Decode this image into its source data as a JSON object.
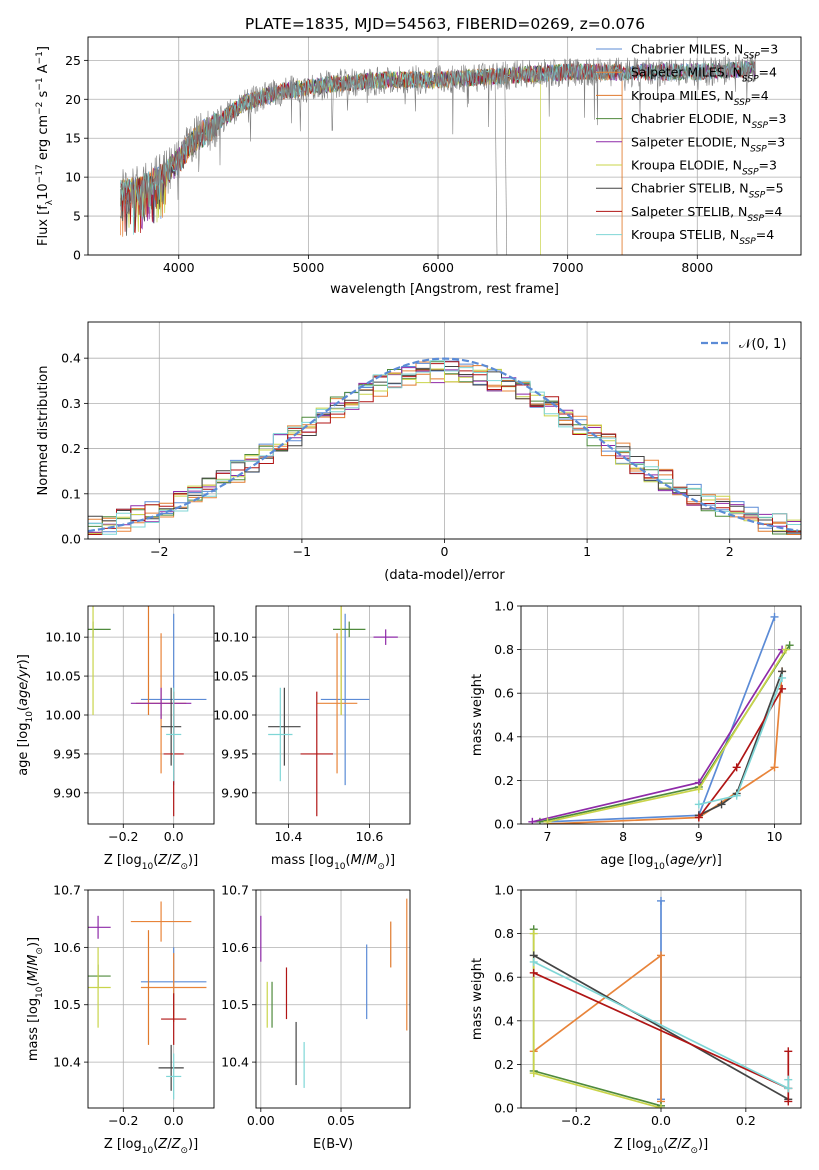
{
  "figure": {
    "title": "PLATE=1835, MJD=54563, FIBERID=0269, z=0.076"
  },
  "colors": {
    "Chabrier MILES": "#5b8bd6",
    "Salpeter MILES": "#e8843a",
    "Kroupa MILES": "#e07a2d",
    "Chabrier ELODIE": "#4f8a3c",
    "Salpeter ELODIE": "#8e2aa8",
    "Kroupa ELODIE": "#c9d44a",
    "Chabrier STELIB": "#444444",
    "Salpeter STELIB": "#b01515",
    "Kroupa STELIB": "#7fd6d6",
    "data": "#808080",
    "grid": "#b0b0b0"
  },
  "chart_data": [
    {
      "id": "spectrum",
      "type": "line",
      "xlabel": "wavelength [Angstrom, rest frame]",
      "ylabel_main": "Flux [f",
      "ylabel_sub": "λ",
      "ylabel_rest": "10",
      "ylabel_exp1": "−17",
      "ylabel_tail": " erg cm",
      "ylabel_exp2": "−2",
      "ylabel_tail2": " s",
      "ylabel_exp3": "−1",
      "ylabel_tail3": " A",
      "ylabel_exp4": "−1",
      "ylabel_end": "]",
      "xlim": [
        3300,
        8800
      ],
      "ylim": [
        0,
        28
      ],
      "xticks": [
        4000,
        5000,
        6000,
        7000,
        8000
      ],
      "yticks": [
        0,
        5,
        10,
        15,
        20,
        25
      ],
      "legend_position": "upper right",
      "legend": [
        {
          "name": "Chabrier MILES",
          "n": "3"
        },
        {
          "name": "Salpeter MILES",
          "n": "4"
        },
        {
          "name": "Kroupa MILES",
          "n": "4"
        },
        {
          "name": "Chabrier ELODIE",
          "n": "3"
        },
        {
          "name": "Salpeter ELODIE",
          "n": "3"
        },
        {
          "name": "Kroupa ELODIE",
          "n": "3"
        },
        {
          "name": "Chabrier STELIB",
          "n": "5"
        },
        {
          "name": "Salpeter STELIB",
          "n": "4"
        },
        {
          "name": "Kroupa STELIB",
          "n": "4"
        }
      ],
      "legend_n_label": "N",
      "legend_n_sub": "SSP",
      "continuum": [
        [
          3550,
          8
        ],
        [
          3700,
          8.5
        ],
        [
          3900,
          10.5
        ],
        [
          4000,
          12
        ],
        [
          4100,
          14.5
        ],
        [
          4300,
          17
        ],
        [
          4500,
          19.5
        ],
        [
          4800,
          21
        ],
        [
          5200,
          22
        ],
        [
          5600,
          22.5
        ],
        [
          6000,
          22.5
        ],
        [
          6500,
          23
        ],
        [
          7000,
          23.5
        ],
        [
          7500,
          23.5
        ],
        [
          8000,
          23.5
        ],
        [
          8450,
          24
        ]
      ]
    },
    {
      "id": "residuals",
      "type": "histogram",
      "xlabel": "(data-model)/error",
      "ylabel": "Normed distribution",
      "xlim": [
        -2.5,
        2.5
      ],
      "ylim": [
        0,
        0.48
      ],
      "xticks": [
        -2,
        -1,
        0,
        1,
        2
      ],
      "yticks": [
        0.0,
        0.1,
        0.2,
        0.3,
        0.4
      ],
      "legend": "𝒩(0, 1)",
      "legend_position": "upper right"
    },
    {
      "id": "age_vs_Z",
      "type": "scatter",
      "xlabel": "Z [log",
      "xlabel_sub": "10",
      "xlabel_rest": "(Z/Z",
      "xlabel_end": ")]",
      "ylabel": "age  [log",
      "ylabel_sub": "10",
      "ylabel_rest": "(age/yr)]",
      "xlim": [
        -0.34,
        0.16
      ],
      "ylim": [
        9.86,
        10.14
      ],
      "xticks": [
        -0.2,
        0.0
      ],
      "yticks": [
        9.9,
        9.95,
        10.0,
        10.05,
        10.1
      ],
      "points": [
        {
          "s": "Chabrier MILES",
          "x": 0.0,
          "y": 10.02,
          "xe": 0.13,
          "ye": 0.11
        },
        {
          "s": "Salpeter MILES",
          "x": -0.05,
          "y": 10.015,
          "xe": 0.1,
          "ye": 0.09
        },
        {
          "s": "Kroupa MILES",
          "x": -0.1,
          "y": 10.1,
          "xe": 0.0,
          "ye": 0.1
        },
        {
          "s": "Chabrier ELODIE",
          "x": -0.32,
          "y": 10.11,
          "xe": 0.07,
          "ye": 0.01
        },
        {
          "s": "Salpeter ELODIE",
          "x": -0.05,
          "y": 10.015,
          "xe": 0.12,
          "ye": 0.02
        },
        {
          "s": "Kroupa ELODIE",
          "x": -0.32,
          "y": 10.1,
          "xe": 0.0,
          "ye": 0.1
        },
        {
          "s": "Chabrier STELIB",
          "x": -0.01,
          "y": 9.985,
          "xe": 0.04,
          "ye": 0.05
        },
        {
          "s": "Salpeter STELIB",
          "x": 0.0,
          "y": 9.95,
          "xe": 0.04,
          "ye": 0.08
        },
        {
          "s": "Kroupa STELIB",
          "x": 0.0,
          "y": 9.975,
          "xe": 0.03,
          "ye": 0.06
        }
      ]
    },
    {
      "id": "age_vs_mass",
      "type": "scatter",
      "xlabel": "mass [log",
      "xlabel_sub": "10",
      "xlabel_rest": "(M/M",
      "xlabel_end": ")]",
      "xlim": [
        10.32,
        10.7
      ],
      "ylim": [
        9.86,
        10.14
      ],
      "xticks": [
        10.4,
        10.6
      ],
      "yticks": [
        9.9,
        9.95,
        10.0,
        10.05,
        10.1
      ],
      "points": [
        {
          "s": "Chabrier MILES",
          "x": 10.54,
          "y": 10.02,
          "xe": 0.06,
          "ye": 0.11
        },
        {
          "s": "Salpeter MILES",
          "x": 10.52,
          "y": 10.015,
          "xe": 0.05,
          "ye": 0.09
        },
        {
          "s": "Kroupa MILES",
          "x": 10.53,
          "y": 10.1,
          "xe": 0.0,
          "ye": 0.1
        },
        {
          "s": "Chabrier ELODIE",
          "x": 10.55,
          "y": 10.11,
          "xe": 0.04,
          "ye": 0.01
        },
        {
          "s": "Salpeter ELODIE",
          "x": 10.64,
          "y": 10.1,
          "xe": 0.03,
          "ye": 0.01
        },
        {
          "s": "Kroupa ELODIE",
          "x": 10.53,
          "y": 10.1,
          "xe": 0.0,
          "ye": 0.1
        },
        {
          "s": "Chabrier STELIB",
          "x": 10.39,
          "y": 9.985,
          "xe": 0.04,
          "ye": 0.05
        },
        {
          "s": "Salpeter STELIB",
          "x": 10.47,
          "y": 9.95,
          "xe": 0.04,
          "ye": 0.08
        },
        {
          "s": "Kroupa STELIB",
          "x": 10.38,
          "y": 9.975,
          "xe": 0.03,
          "ye": 0.06
        }
      ]
    },
    {
      "id": "massweight_vs_age",
      "type": "line",
      "xlabel": "age  [log",
      "xlabel_sub": "10",
      "xlabel_rest": "(age/yr)]",
      "ylabel": "mass weight",
      "xlim": [
        6.65,
        10.35
      ],
      "ylim": [
        0,
        1.0
      ],
      "xticks": [
        7,
        8,
        9,
        10
      ],
      "yticks": [
        0.0,
        0.2,
        0.4,
        0.6,
        0.8,
        1.0
      ],
      "series": [
        {
          "name": "Chabrier MILES",
          "points": [
            [
              7.0,
              0.01
            ],
            [
              9.0,
              0.04
            ],
            [
              10.0,
              0.95
            ]
          ]
        },
        {
          "name": "Salpeter MILES",
          "points": [
            [
              7.0,
              0.0
            ],
            [
              9.0,
              0.03
            ],
            [
              10.0,
              0.26
            ],
            [
              10.1,
              0.7
            ]
          ]
        },
        {
          "name": "Chabrier ELODIE",
          "points": [
            [
              6.9,
              0.01
            ],
            [
              9.0,
              0.17
            ],
            [
              10.2,
              0.82
            ]
          ]
        },
        {
          "name": "Salpeter ELODIE",
          "points": [
            [
              6.8,
              0.01
            ],
            [
              9.0,
              0.19
            ],
            [
              10.1,
              0.8
            ]
          ]
        },
        {
          "name": "Kroupa ELODIE",
          "points": [
            [
              7.0,
              0.01
            ],
            [
              9.0,
              0.16
            ],
            [
              10.15,
              0.8
            ]
          ]
        },
        {
          "name": "Chabrier STELIB",
          "points": [
            [
              9.0,
              0.04
            ],
            [
              9.3,
              0.09
            ],
            [
              9.5,
              0.14
            ],
            [
              10.1,
              0.7
            ]
          ]
        },
        {
          "name": "Salpeter STELIB",
          "points": [
            [
              9.0,
              0.03
            ],
            [
              9.5,
              0.26
            ],
            [
              10.1,
              0.62
            ]
          ]
        },
        {
          "name": "Kroupa STELIB",
          "points": [
            [
              9.0,
              0.09
            ],
            [
              9.5,
              0.13
            ],
            [
              10.1,
              0.67
            ]
          ]
        }
      ]
    },
    {
      "id": "mass_vs_Z",
      "type": "scatter",
      "xlabel": "Z [log",
      "xlabel_sub": "10",
      "xlabel_rest": "(Z/Z",
      "xlabel_end": ")]",
      "ylabel": "mass [log",
      "ylabel_sub": "10",
      "ylabel_rest": "(M/M",
      "ylabel_end": ")]",
      "xlim": [
        -0.34,
        0.16
      ],
      "ylim": [
        10.32,
        10.7
      ],
      "xticks": [
        -0.2,
        0.0
      ],
      "yticks": [
        10.4,
        10.5,
        10.6,
        10.7
      ],
      "points": [
        {
          "s": "Chabrier MILES",
          "x": 0.0,
          "y": 10.54,
          "xe": 0.13,
          "ye": 0.06
        },
        {
          "s": "Salpeter MILES",
          "x": 0.0,
          "y": 10.53,
          "xe": 0.13,
          "ye": 0.06
        },
        {
          "s": "Kroupa MILES",
          "x": -0.1,
          "y": 10.53,
          "xe": 0.0,
          "ye": 0.1
        },
        {
          "s": "Chabrier ELODIE",
          "x": -0.3,
          "y": 10.55,
          "xe": 0.05,
          "ye": 0.02
        },
        {
          "s": "Salpeter ELODIE",
          "x": -0.3,
          "y": 10.635,
          "xe": 0.05,
          "ye": 0.02
        },
        {
          "s": "Kroupa ELODIE",
          "x": -0.3,
          "y": 10.53,
          "xe": 0.05,
          "ye": 0.07
        },
        {
          "s": "Chabrier STELIB",
          "x": -0.01,
          "y": 10.39,
          "xe": 0.05,
          "ye": 0.04
        },
        {
          "s": "Salpeter STELIB",
          "x": 0.0,
          "y": 10.475,
          "xe": 0.05,
          "ye": 0.045
        },
        {
          "s": "Kroupa STELIB",
          "x": 0.0,
          "y": 10.375,
          "xe": 0.03,
          "ye": 0.04
        }
      ],
      "extra_point": {
        "s": "Salpeter MILES",
        "x": -0.05,
        "y": 10.645,
        "xe": 0.12,
        "ye": 0.035
      }
    },
    {
      "id": "mass_vs_ebv",
      "type": "scatter",
      "xlabel": "E(B-V)",
      "xlim": [
        -0.003,
        0.093
      ],
      "ylim": [
        10.32,
        10.7
      ],
      "xticks": [
        0.0,
        0.05
      ],
      "yticks": [
        10.4,
        10.5,
        10.6,
        10.7
      ],
      "points": [
        {
          "s": "Salpeter ELODIE",
          "x": 0.0,
          "y": 10.615,
          "ye": 0.04
        },
        {
          "s": "Kroupa ELODIE",
          "x": 0.004,
          "y": 10.5,
          "ye": 0.04
        },
        {
          "s": "Chabrier ELODIE",
          "x": 0.007,
          "y": 10.5,
          "ye": 0.04
        },
        {
          "s": "Salpeter STELIB",
          "x": 0.016,
          "y": 10.52,
          "ye": 0.045
        },
        {
          "s": "Chabrier STELIB",
          "x": 0.022,
          "y": 10.415,
          "ye": 0.055
        },
        {
          "s": "Kroupa STELIB",
          "x": 0.027,
          "y": 10.395,
          "ye": 0.04
        },
        {
          "s": "Chabrier MILES",
          "x": 0.066,
          "y": 10.54,
          "ye": 0.065
        },
        {
          "s": "Kroupa MILES",
          "x": 0.081,
          "y": 10.605,
          "ye": 0.04
        },
        {
          "s": "Salpeter MILES",
          "x": 0.091,
          "y": 10.57,
          "ye": 0.115
        }
      ]
    },
    {
      "id": "massweight_vs_Z",
      "type": "line",
      "xlabel": "Z [log",
      "xlabel_sub": "10",
      "xlabel_rest": "(Z/Z",
      "xlabel_end": ")]",
      "ylabel": "mass weight",
      "xlim": [
        -0.33,
        0.33
      ],
      "ylim": [
        0,
        1.0
      ],
      "xticks": [
        -0.2,
        0.0,
        0.2
      ],
      "yticks": [
        0.0,
        0.2,
        0.4,
        0.6,
        0.8,
        1.0
      ],
      "series": [
        {
          "name": "Chabrier MILES",
          "points": [
            [
              0.0,
              0.95
            ],
            [
              0.0,
              0.04
            ]
          ]
        },
        {
          "name": "Salpeter MILES",
          "points": [
            [
              -0.3,
              0.26
            ],
            [
              0.0,
              0.7
            ],
            [
              0.0,
              0.03
            ]
          ]
        },
        {
          "name": "Chabrier ELODIE",
          "points": [
            [
              -0.3,
              0.82
            ],
            [
              -0.3,
              0.17
            ],
            [
              0.0,
              0.01
            ]
          ]
        },
        {
          "name": "Kroupa ELODIE",
          "points": [
            [
              -0.3,
              0.8
            ],
            [
              -0.3,
              0.16
            ],
            [
              0.0,
              0.0
            ]
          ]
        },
        {
          "name": "Chabrier STELIB",
          "points": [
            [
              -0.3,
              0.7
            ],
            [
              0.3,
              0.04
            ]
          ]
        },
        {
          "name": "Salpeter STELIB",
          "points": [
            [
              -0.3,
              0.62
            ],
            [
              0.3,
              0.09
            ],
            [
              0.3,
              0.26
            ],
            [
              0.3,
              0.03
            ]
          ]
        },
        {
          "name": "Kroupa STELIB",
          "points": [
            [
              -0.3,
              0.67
            ],
            [
              0.3,
              0.09
            ],
            [
              0.3,
              0.13
            ]
          ]
        }
      ]
    }
  ]
}
